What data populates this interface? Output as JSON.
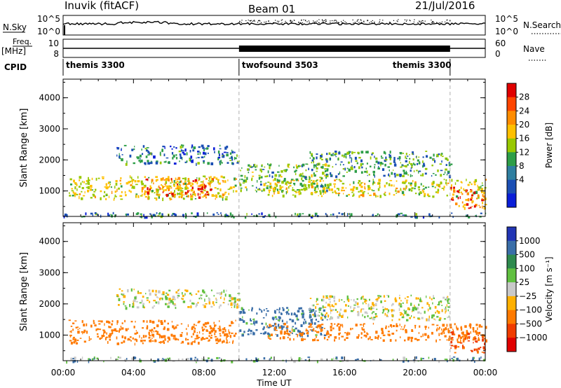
{
  "header": {
    "station": "Inuvik (fitACF)",
    "beam": "Beam 01",
    "date": "21/Jul/2016"
  },
  "left_labels": {
    "nsky": "N.Sky",
    "freq": "Freq.",
    "freq_unit": "[MHz]",
    "cpid": "CPID"
  },
  "right_labels": {
    "nsearch": "N.Search",
    "nave": "Nave"
  },
  "strip_ticks": {
    "noise_left": [
      "10^5",
      "10^0"
    ],
    "noise_right": [
      "10^5",
      "10^0"
    ],
    "freq_left": [
      "10",
      "8"
    ],
    "freq_right": [
      "60",
      "0"
    ]
  },
  "cpid_segments": [
    {
      "label": "themis 3300",
      "from_hour": 0,
      "to_hour": 10
    },
    {
      "label": "twofsound 3503",
      "from_hour": 10,
      "to_hour": 22
    },
    {
      "label": "themis 3300",
      "from_hour": 22,
      "to_hour": 24
    }
  ],
  "panels": {
    "power": {
      "ylabel": "Slant Range [km]",
      "cbar_label": "Power [dB]",
      "cbar_ticks": [
        "28",
        "24",
        "20",
        "16",
        "12",
        "8",
        "4"
      ],
      "cbar_colors": [
        "#e00000",
        "#ff4500",
        "#ff8c00",
        "#ffc000",
        "#98c800",
        "#2e9e48",
        "#2f7fa0",
        "#1b4fb4",
        "#0a1ed8"
      ]
    },
    "velocity": {
      "ylabel": "Slant Range [km]",
      "cbar_label": "Velocity [m s⁻¹]",
      "cbar_ticks": [
        "1000",
        "500",
        "100",
        "25",
        "−25",
        "−100",
        "−500",
        "−1000"
      ],
      "cbar_colors": [
        "#2135b4",
        "#3a6ea8",
        "#2e8a4e",
        "#60c040",
        "#c9c9c9",
        "#ffb000",
        "#ff7a00",
        "#f03c00",
        "#e00000"
      ]
    }
  },
  "chart_data": {
    "type": "heatmap",
    "title": "Inuvik (fitACF) Beam 01 21/Jul/2016",
    "xlabel": "Time UT",
    "ylabel": "Slant Range [km]",
    "x_ticks": [
      "00:00",
      "04:00",
      "08:00",
      "12:00",
      "16:00",
      "20:00",
      "00:00"
    ],
    "x_range_hours": [
      0,
      24
    ],
    "y_ticks": [
      1000,
      2000,
      3000,
      4000
    ],
    "y_range_km": [
      180,
      4600
    ],
    "mode_change_hours": [
      10,
      22
    ],
    "series": [
      {
        "name": "Power [dB]",
        "range_cm": [
          [
            4,
            "#0a1ed8"
          ],
          [
            8,
            "#1b4fb4"
          ],
          [
            12,
            "#2e9e48"
          ],
          [
            16,
            "#98c800"
          ],
          [
            20,
            "#ffc000"
          ],
          [
            24,
            "#ff8c00"
          ],
          [
            28,
            "#e00000"
          ]
        ],
        "regions": [
          {
            "t": [
              0.3,
              9.8
            ],
            "r": [
              750,
              1500
            ],
            "value": 16
          },
          {
            "t": [
              4.5,
              8.5
            ],
            "r": [
              850,
              1450
            ],
            "value": 22
          },
          {
            "t": [
              7.6,
              8.2
            ],
            "r": [
              800,
              1300
            ],
            "value": 28
          },
          {
            "t": [
              3.0,
              10.0
            ],
            "r": [
              1900,
              2500
            ],
            "value": 8
          },
          {
            "t": [
              10.0,
              15.0
            ],
            "r": [
              1000,
              1900
            ],
            "value": 12
          },
          {
            "t": [
              11.5,
              24.0
            ],
            "r": [
              850,
              1400
            ],
            "value": 16
          },
          {
            "t": [
              14.0,
              22.0
            ],
            "r": [
              1500,
              2300
            ],
            "value": 10
          },
          {
            "t": [
              22.0,
              24.0
            ],
            "r": [
              450,
              1150
            ],
            "value": 22
          },
          {
            "t": [
              0.0,
              24.0
            ],
            "r": [
              180,
              320
            ],
            "value": 8
          }
        ]
      },
      {
        "name": "Velocity [m s⁻¹]",
        "range_cm": [
          [
            -1000,
            "#e00000"
          ],
          [
            -500,
            "#f03c00"
          ],
          [
            -100,
            "#ff7a00"
          ],
          [
            -25,
            "#ffb000"
          ],
          [
            25,
            "#c9c9c9"
          ],
          [
            100,
            "#60c040"
          ],
          [
            500,
            "#3a6ea8"
          ],
          [
            1000,
            "#2135b4"
          ]
        ],
        "regions": [
          {
            "t": [
              0.3,
              9.8
            ],
            "r": [
              750,
              1500
            ],
            "value": -300
          },
          {
            "t": [
              3.0,
              10.0
            ],
            "r": [
              1900,
              2500
            ],
            "value": 0
          },
          {
            "t": [
              10.0,
              15.0
            ],
            "r": [
              1000,
              1900
            ],
            "value": 200
          },
          {
            "t": [
              11.5,
              24.0
            ],
            "r": [
              850,
              1400
            ],
            "value": -300
          },
          {
            "t": [
              14.0,
              22.0
            ],
            "r": [
              1500,
              2300
            ],
            "value": 0
          },
          {
            "t": [
              22.0,
              24.0
            ],
            "r": [
              450,
              1150
            ],
            "value": -600
          },
          {
            "t": [
              0.0,
              24.0
            ],
            "r": [
              180,
              320
            ],
            "value": 80
          }
        ]
      }
    ]
  }
}
